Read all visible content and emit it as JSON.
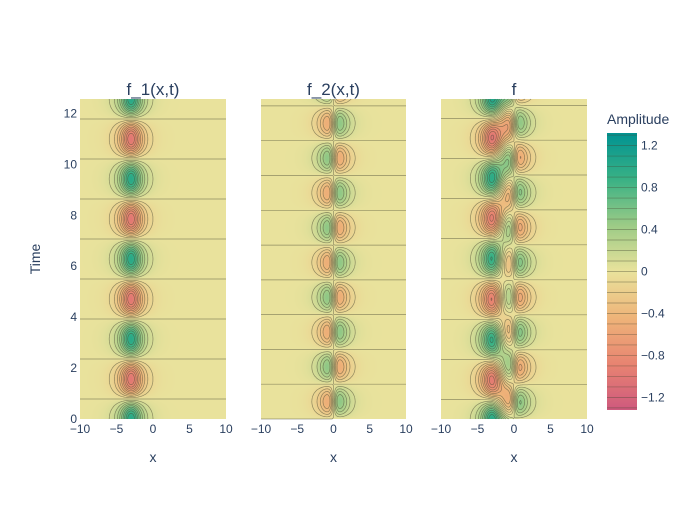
{
  "chart_data": [
    {
      "type": "contour",
      "title": "f_1(x,t)",
      "xlabel": "x",
      "ylabel": "Time",
      "xlim": [
        -10,
        10
      ],
      "ylim": [
        0,
        12.566
      ],
      "x_ticks": [
        "−10",
        "−5",
        "0",
        "5",
        "10"
      ],
      "y_ticks": [
        "0",
        "2",
        "4",
        "6",
        "8",
        "10",
        "12"
      ],
      "field": {
        "expression": "sech(x+3) * cos(2 t)",
        "centers_x": [
          -3
        ],
        "frequency_t": 2
      }
    },
    {
      "type": "contour",
      "title": "f_2(x,t)",
      "xlabel": "x",
      "ylabel": "",
      "xlim": [
        -10,
        10
      ],
      "ylim": [
        0,
        12.566
      ],
      "x_ticks": [
        "−10",
        "−5",
        "0",
        "5",
        "10"
      ],
      "field": {
        "expression": "tanh(x) * sech(x) * sin(2.3 t)",
        "centers_x": [
          -1,
          1
        ],
        "frequency_t": 2.3
      }
    },
    {
      "type": "contour",
      "title": "f",
      "xlabel": "x",
      "ylabel": "",
      "xlim": [
        -10,
        10
      ],
      "ylim": [
        0,
        12.566
      ],
      "x_ticks": [
        "−10",
        "−5",
        "0",
        "5",
        "10"
      ],
      "field": {
        "expression": "f_1 + f_2"
      }
    }
  ],
  "colorbar": {
    "title": "Amplitude",
    "range": [
      -1.32,
      1.32
    ],
    "ticks": [
      {
        "value": 1.2,
        "label": "1.2"
      },
      {
        "value": 0.8,
        "label": "0.8"
      },
      {
        "value": 0.4,
        "label": "0.4"
      },
      {
        "value": 0,
        "label": "0"
      },
      {
        "value": -0.4,
        "label": "−0.4"
      },
      {
        "value": -0.8,
        "label": "−0.8"
      },
      {
        "value": -1.2,
        "label": "−1.2"
      }
    ],
    "colorscale": [
      "#009392",
      "#39b185",
      "#9ccb86",
      "#e9e29c",
      "#eeb479",
      "#e88471",
      "#cf597e"
    ]
  }
}
